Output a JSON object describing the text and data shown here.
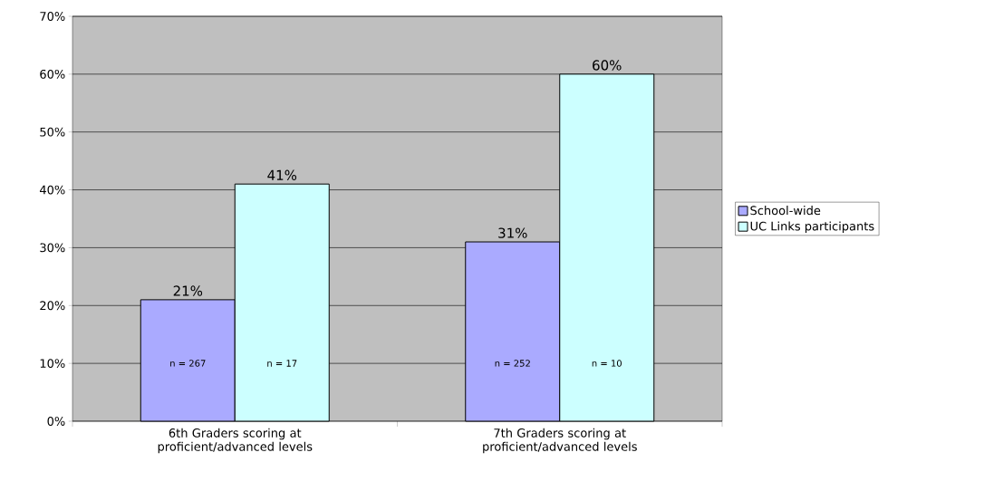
{
  "chart_data": {
    "type": "bar",
    "categories": [
      "6th Graders scoring at proficient/advanced levels",
      "7th Graders scoring at proficient/advanced levels"
    ],
    "series": [
      {
        "name": "School-wide",
        "color": "#aaaaff",
        "values": [
          21,
          31
        ],
        "value_labels": [
          "21%",
          "31%"
        ]
      },
      {
        "name": "UC Links participants",
        "color": "#ccffff",
        "values": [
          41,
          60
        ],
        "value_labels": [
          "41%",
          "60%"
        ]
      }
    ],
    "ylim": [
      0,
      70
    ],
    "yticks": [
      {
        "value": 0,
        "label": "0%"
      },
      {
        "value": 10,
        "label": "10%"
      },
      {
        "value": 20,
        "label": "20%"
      },
      {
        "value": 30,
        "label": "30%"
      },
      {
        "value": 40,
        "label": "40%"
      },
      {
        "value": 50,
        "label": "50%"
      },
      {
        "value": 60,
        "label": "60%"
      },
      {
        "value": 70,
        "label": "70%"
      }
    ],
    "grid": "y",
    "legend": "right",
    "annotations": [
      "n = 267",
      "n = 17",
      "n = 252",
      "n = 10"
    ]
  }
}
